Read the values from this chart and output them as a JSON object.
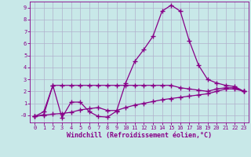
{
  "background_color": "#c8e8e8",
  "grid_color": "#b0b0cc",
  "line_color": "#880088",
  "xlabel": "Windchill (Refroidissement éolien,°C)",
  "xlim": [
    -0.5,
    23.5
  ],
  "ylim": [
    -0.6,
    9.5
  ],
  "yticks": [
    0,
    1,
    2,
    3,
    4,
    5,
    6,
    7,
    8,
    9
  ],
  "ytick_labels": [
    "-0",
    "1",
    "2",
    "3",
    "4",
    "5",
    "6",
    "7",
    "8",
    "9"
  ],
  "xticks": [
    0,
    1,
    2,
    3,
    4,
    5,
    6,
    7,
    8,
    9,
    10,
    11,
    12,
    13,
    14,
    15,
    16,
    17,
    18,
    19,
    20,
    21,
    22,
    23
  ],
  "series": [
    {
      "x": [
        0,
        1,
        2,
        3,
        4,
        5,
        6,
        7,
        8,
        9,
        10,
        11,
        12,
        13,
        14,
        15,
        16,
        17,
        18,
        19,
        20,
        21,
        22,
        23
      ],
      "y": [
        -0.1,
        0.3,
        2.5,
        -0.2,
        1.1,
        1.1,
        0.3,
        -0.1,
        -0.15,
        0.35,
        2.7,
        4.5,
        5.5,
        6.6,
        8.7,
        9.2,
        8.7,
        6.2,
        4.2,
        3.0,
        2.7,
        2.5,
        2.4,
        2.0
      ]
    },
    {
      "x": [
        0,
        1,
        2,
        3,
        4,
        5,
        6,
        7,
        8,
        9,
        10,
        11,
        12,
        13,
        14,
        15,
        16,
        17,
        18,
        19,
        20,
        21,
        22,
        23
      ],
      "y": [
        -0.1,
        0.05,
        2.5,
        2.5,
        2.5,
        2.5,
        2.5,
        2.5,
        2.5,
        2.5,
        2.5,
        2.5,
        2.5,
        2.5,
        2.5,
        2.5,
        2.3,
        2.2,
        2.1,
        2.0,
        2.2,
        2.3,
        2.3,
        2.0
      ]
    },
    {
      "x": [
        0,
        1,
        2,
        3,
        4,
        5,
        6,
        7,
        8,
        9,
        10,
        11,
        12,
        13,
        14,
        15,
        16,
        17,
        18,
        19,
        20,
        21,
        22,
        23
      ],
      "y": [
        -0.1,
        0.0,
        0.1,
        0.15,
        0.25,
        0.45,
        0.55,
        0.65,
        0.4,
        0.4,
        0.65,
        0.85,
        1.0,
        1.15,
        1.3,
        1.4,
        1.5,
        1.6,
        1.7,
        1.8,
        2.0,
        2.2,
        2.2,
        2.0
      ]
    }
  ],
  "marker": "+",
  "markersize": 4,
  "markeredgewidth": 1.0,
  "linewidth": 0.9,
  "tick_fontsize": 5.0,
  "xlabel_fontsize": 6.0,
  "xlabel_fontweight": "bold"
}
